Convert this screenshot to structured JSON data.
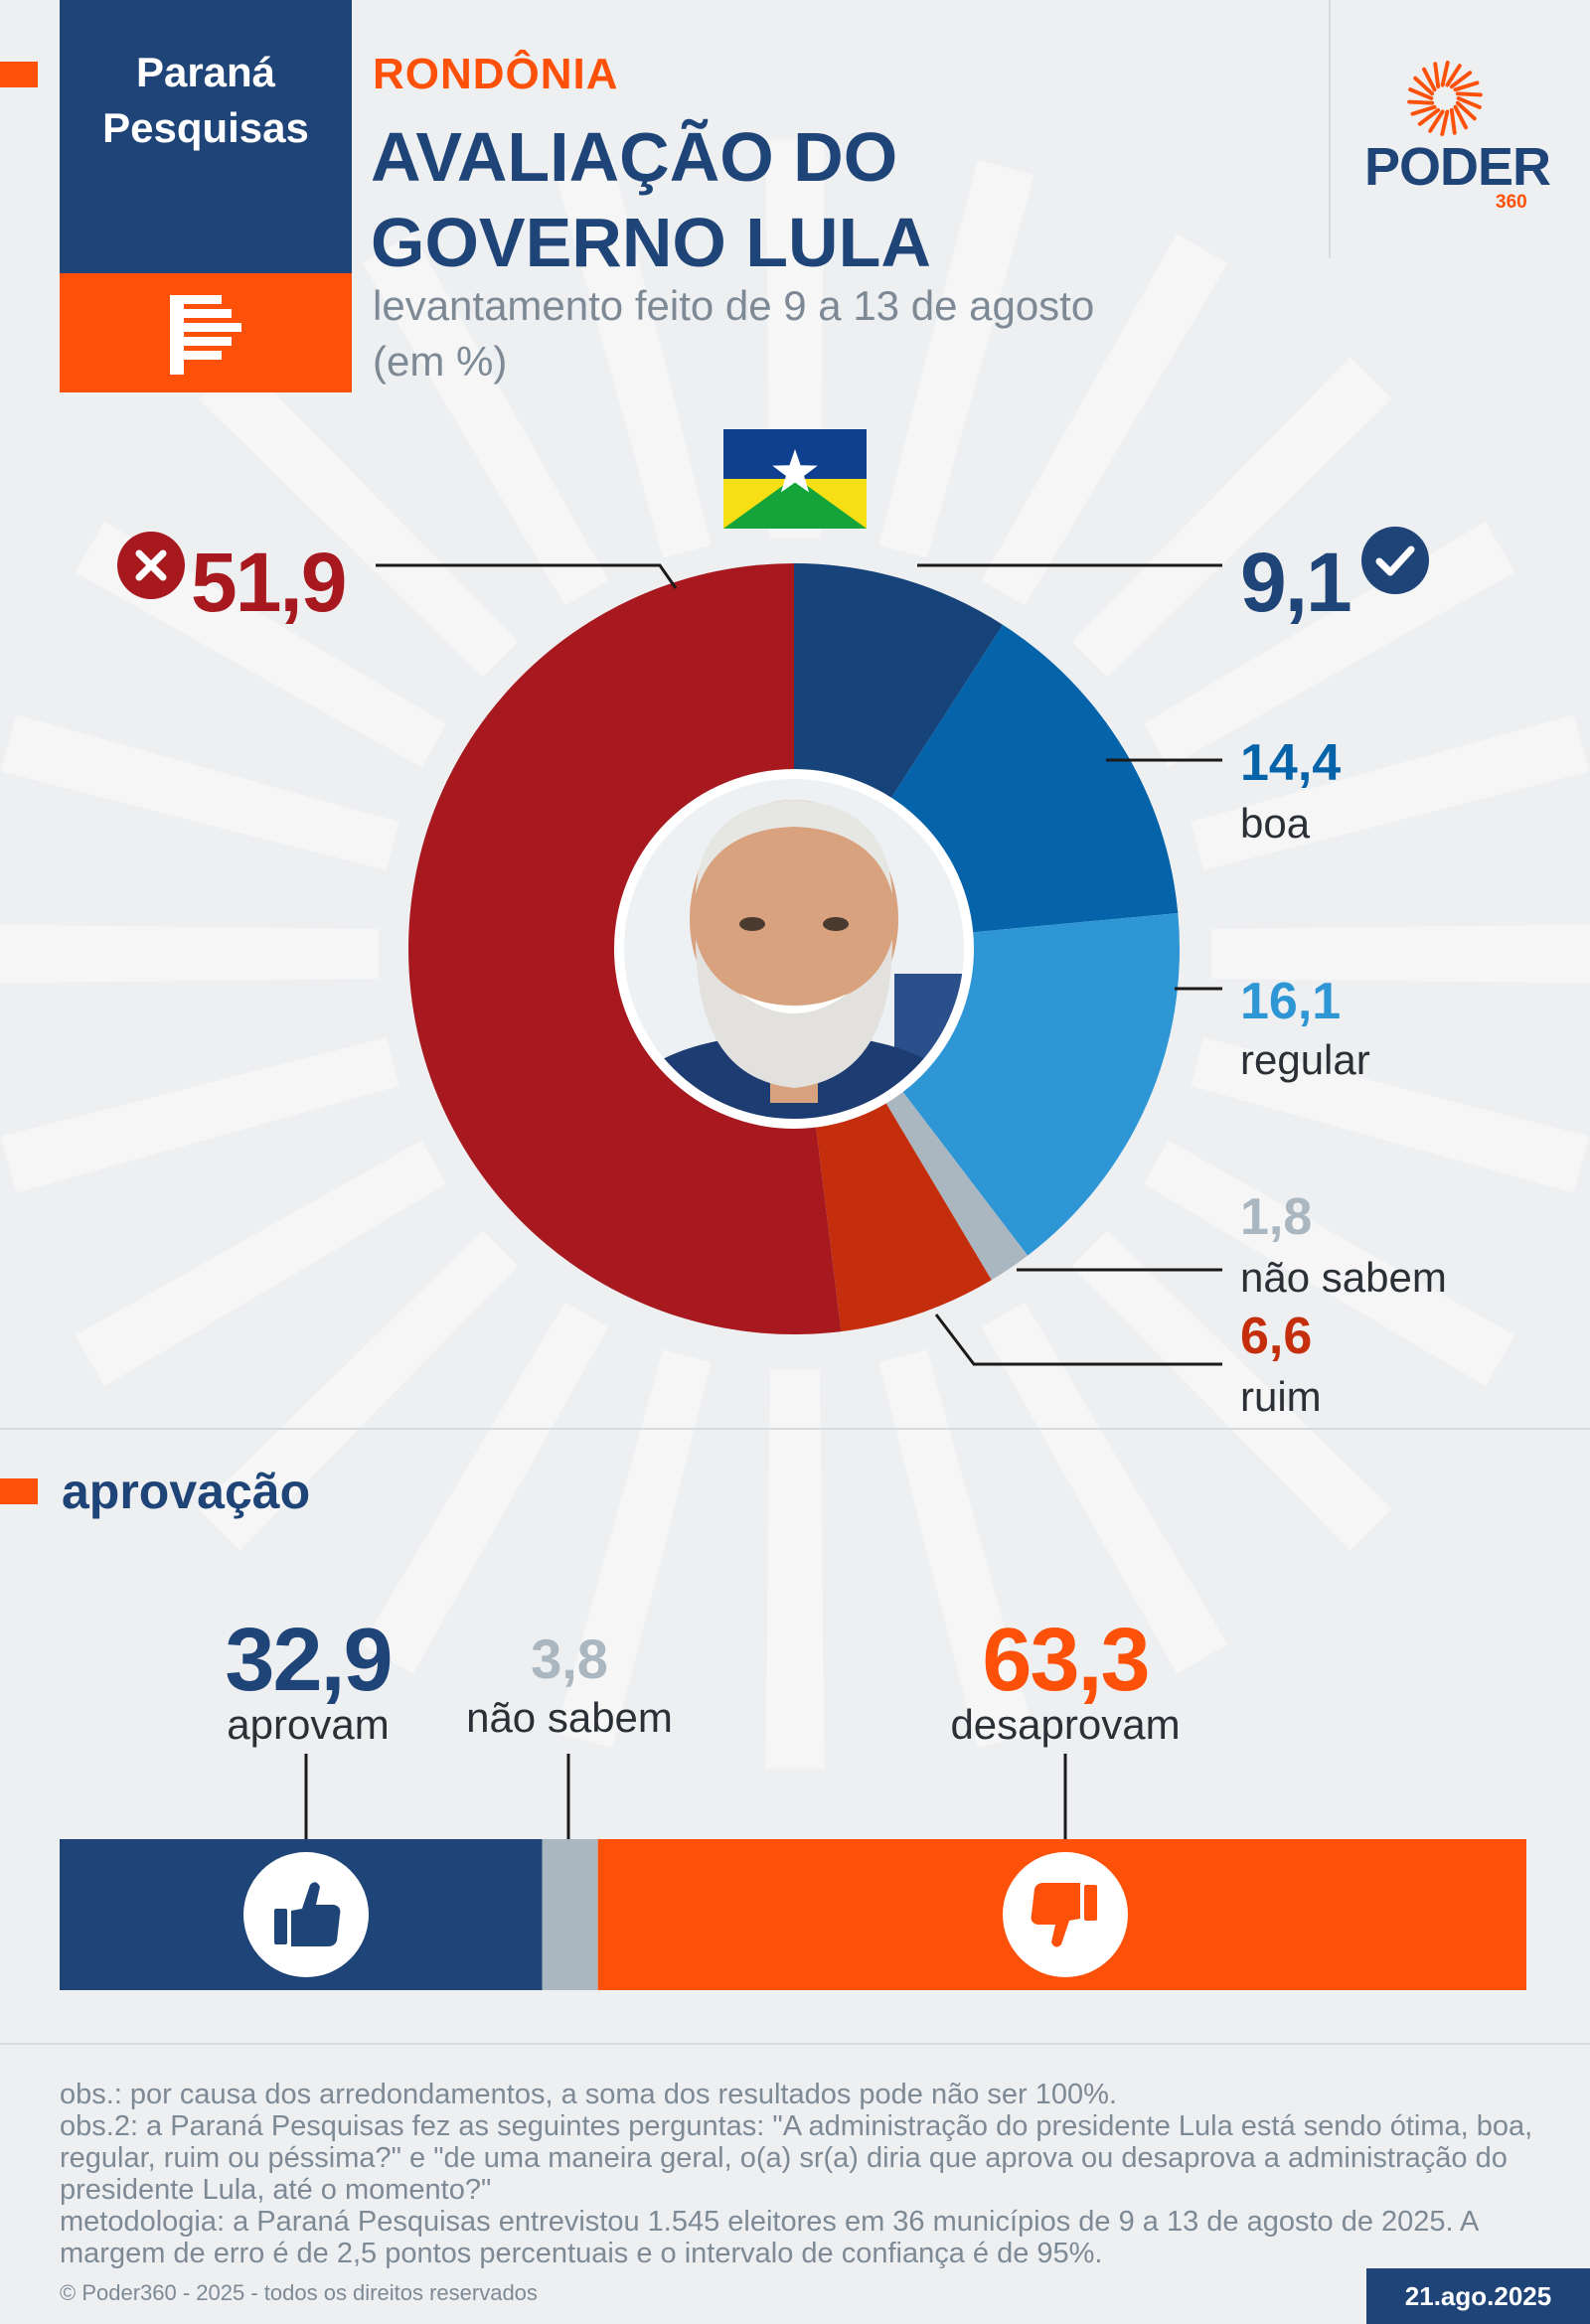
{
  "colors": {
    "navy": "#1f4478",
    "orange": "#fd5109",
    "otima": "#15437a",
    "boa": "#0563aa",
    "regular": "#2f96d6",
    "nao_sabem": "#aab7c0",
    "ruim": "#c52e0d",
    "pessima": "#a7191e"
  },
  "brand": {
    "name": "Paraná\nPesquisas",
    "logo_icon": "parana-pesquisas-logo-icon"
  },
  "header": {
    "state": "RONDÔNIA",
    "title": "AVALIAÇÃO DO\nGOVERNO LULA",
    "subtitle": "levantamento feito de 9 a 13 de agosto\n(em %)"
  },
  "publisher": {
    "name": "PODER",
    "sub": "360",
    "icon": "sun-rays-icon"
  },
  "chart_data": [
    {
      "type": "pie",
      "variant": "donut",
      "center_image": "photo of Lula",
      "flag": "Rondônia state flag",
      "unit": "%",
      "series": [
        {
          "value": 9.1,
          "display": "9,1",
          "label": "",
          "color": "#15437a",
          "marker": "check-icon"
        },
        {
          "value": 14.4,
          "display": "14,4",
          "label": "boa",
          "color": "#0563aa"
        },
        {
          "value": 16.1,
          "display": "16,1",
          "label": "regular",
          "color": "#2f96d6"
        },
        {
          "value": 1.8,
          "display": "1,8",
          "label": "não sabem",
          "color": "#aab7c0"
        },
        {
          "value": 6.6,
          "display": "6,6",
          "label": "ruim",
          "color": "#c52e0d"
        },
        {
          "value": 51.9,
          "display": "51,9",
          "label": "",
          "color": "#a7191e",
          "marker": "x-icon"
        }
      ]
    },
    {
      "type": "bar",
      "orientation": "horizontal-stacked",
      "title": "aprovação",
      "unit": "%",
      "series": [
        {
          "value": 32.9,
          "display": "32,9",
          "label": "aprovam",
          "color": "#1f4478",
          "icon": "thumbs-up-icon"
        },
        {
          "value": 3.8,
          "display": "3,8",
          "label": "não sabem",
          "color": "#aab7c0"
        },
        {
          "value": 63.3,
          "display": "63,3",
          "label": "desaprovam",
          "color": "#fd5109",
          "icon": "thumbs-down-icon"
        }
      ]
    }
  ],
  "notes": [
    "obs.: por causa dos arredondamentos, a soma dos resultados pode não ser 100%.",
    "obs.2: a Paraná Pesquisas fez as seguintes perguntas: \"A administração do presidente Lula está sendo ótima, boa, regular, ruim ou péssima?\" e \"de uma maneira geral, o(a) sr(a) diria que aprova ou desaprova a administração do presidente Lula, até o momento?\"",
    "metodologia: a Paraná Pesquisas entrevistou 1.545 eleitores em 36 municípios de 9 a 13 de agosto de 2025. A margem de erro é de 2,5 pontos percentuais e o intervalo de confiança é de 95%."
  ],
  "footer": {
    "copyright": "© Poder360 - 2025 - todos os direitos reservados",
    "date": "21.ago.2025"
  }
}
